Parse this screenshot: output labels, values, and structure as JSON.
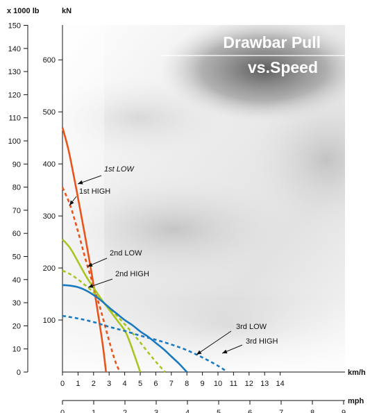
{
  "chart_data": {
    "type": "line",
    "title_line1": "Drawbar Pull",
    "title_line2": "vs.Speed",
    "y_left_label": "x 1000 lb",
    "y_right_label": "kN",
    "x_kmh_label": "km/h",
    "x_mph_label": "mph",
    "lb_ticks": [
      0,
      10,
      20,
      30,
      40,
      50,
      60,
      70,
      80,
      90,
      100,
      110,
      120,
      130,
      140,
      150
    ],
    "kn_ticks": [
      100,
      200,
      300,
      400,
      500,
      600
    ],
    "kmh_ticks": [
      0,
      1,
      2,
      3,
      4,
      5,
      6,
      7,
      8,
      9,
      10,
      11,
      12,
      13,
      14
    ],
    "mph_ticks": [
      0,
      1,
      2,
      3,
      4,
      5,
      6,
      7,
      8,
      9
    ],
    "xlim_kmh": [
      0,
      14
    ],
    "ylim_kN": [
      0,
      667
    ],
    "series": [
      {
        "name": "1st LOW",
        "color": "#e8541a",
        "dash": false,
        "points": [
          [
            0,
            470
          ],
          [
            0.4,
            425
          ],
          [
            0.9,
            350
          ],
          [
            1.4,
            270
          ],
          [
            1.9,
            185
          ],
          [
            2.3,
            110
          ],
          [
            2.6,
            50
          ],
          [
            2.8,
            0
          ]
        ]
      },
      {
        "name": "1st HIGH",
        "color": "#e8541a",
        "dash": true,
        "points": [
          [
            0,
            355
          ],
          [
            0.5,
            320
          ],
          [
            1.0,
            270
          ],
          [
            1.5,
            215
          ],
          [
            2.0,
            165
          ],
          [
            2.5,
            115
          ],
          [
            3.0,
            60
          ],
          [
            3.4,
            20
          ],
          [
            3.7,
            0
          ]
        ]
      },
      {
        "name": "2nd LOW",
        "color": "#a8c520",
        "dash": false,
        "points": [
          [
            0,
            255
          ],
          [
            0.5,
            238
          ],
          [
            1.0,
            212
          ],
          [
            1.5,
            185
          ],
          [
            2.0,
            162
          ],
          [
            2.5,
            140
          ],
          [
            3.0,
            120
          ],
          [
            3.5,
            100
          ],
          [
            4.0,
            80
          ],
          [
            4.3,
            60
          ],
          [
            4.6,
            35
          ],
          [
            5.0,
            0
          ]
        ]
      },
      {
        "name": "2nd HIGH",
        "color": "#a8c520",
        "dash": true,
        "points": [
          [
            0,
            195
          ],
          [
            0.5,
            188
          ],
          [
            1.0,
            178
          ],
          [
            1.5,
            166
          ],
          [
            2.0,
            153
          ],
          [
            2.5,
            138
          ],
          [
            3.0,
            123
          ],
          [
            3.5,
            108
          ],
          [
            4.0,
            92
          ],
          [
            4.5,
            75
          ],
          [
            5.0,
            57
          ],
          [
            5.5,
            38
          ],
          [
            6.0,
            20
          ],
          [
            6.6,
            0
          ]
        ]
      },
      {
        "name": "3rd LOW",
        "color": "#1b79c0",
        "dash": false,
        "points": [
          [
            0,
            167
          ],
          [
            0.5,
            166
          ],
          [
            1.0,
            163
          ],
          [
            1.5,
            157
          ],
          [
            2.0,
            148
          ],
          [
            2.5,
            137
          ],
          [
            3.0,
            124
          ],
          [
            3.5,
            112
          ],
          [
            4.0,
            100
          ],
          [
            4.5,
            90
          ],
          [
            5.0,
            78
          ],
          [
            5.5,
            68
          ],
          [
            6.0,
            56
          ],
          [
            6.5,
            44
          ],
          [
            7.0,
            30
          ],
          [
            7.5,
            16
          ],
          [
            8.0,
            0
          ]
        ]
      },
      {
        "name": "3rd HIGH",
        "color": "#1b79c0",
        "dash": true,
        "points": [
          [
            0,
            108
          ],
          [
            1.0,
            103
          ],
          [
            2.0,
            96
          ],
          [
            3.0,
            87
          ],
          [
            4.0,
            79
          ],
          [
            5.0,
            70
          ],
          [
            6.0,
            62
          ],
          [
            7.0,
            53
          ],
          [
            8.0,
            42
          ],
          [
            9.0,
            28
          ],
          [
            10.0,
            12
          ],
          [
            10.6,
            0
          ]
        ]
      }
    ],
    "annotations": [
      {
        "text": "1st LOW",
        "italic": true,
        "series": 0
      },
      {
        "text": "1st HIGH",
        "italic": false,
        "series": 1
      },
      {
        "text": "2nd LOW",
        "italic": false,
        "series": 2
      },
      {
        "text": "2nd HIGH",
        "italic": false,
        "series": 3
      },
      {
        "text": "3rd LOW",
        "italic": false,
        "series": 4
      },
      {
        "text": "3rd HIGH",
        "italic": false,
        "series": 5
      }
    ]
  }
}
